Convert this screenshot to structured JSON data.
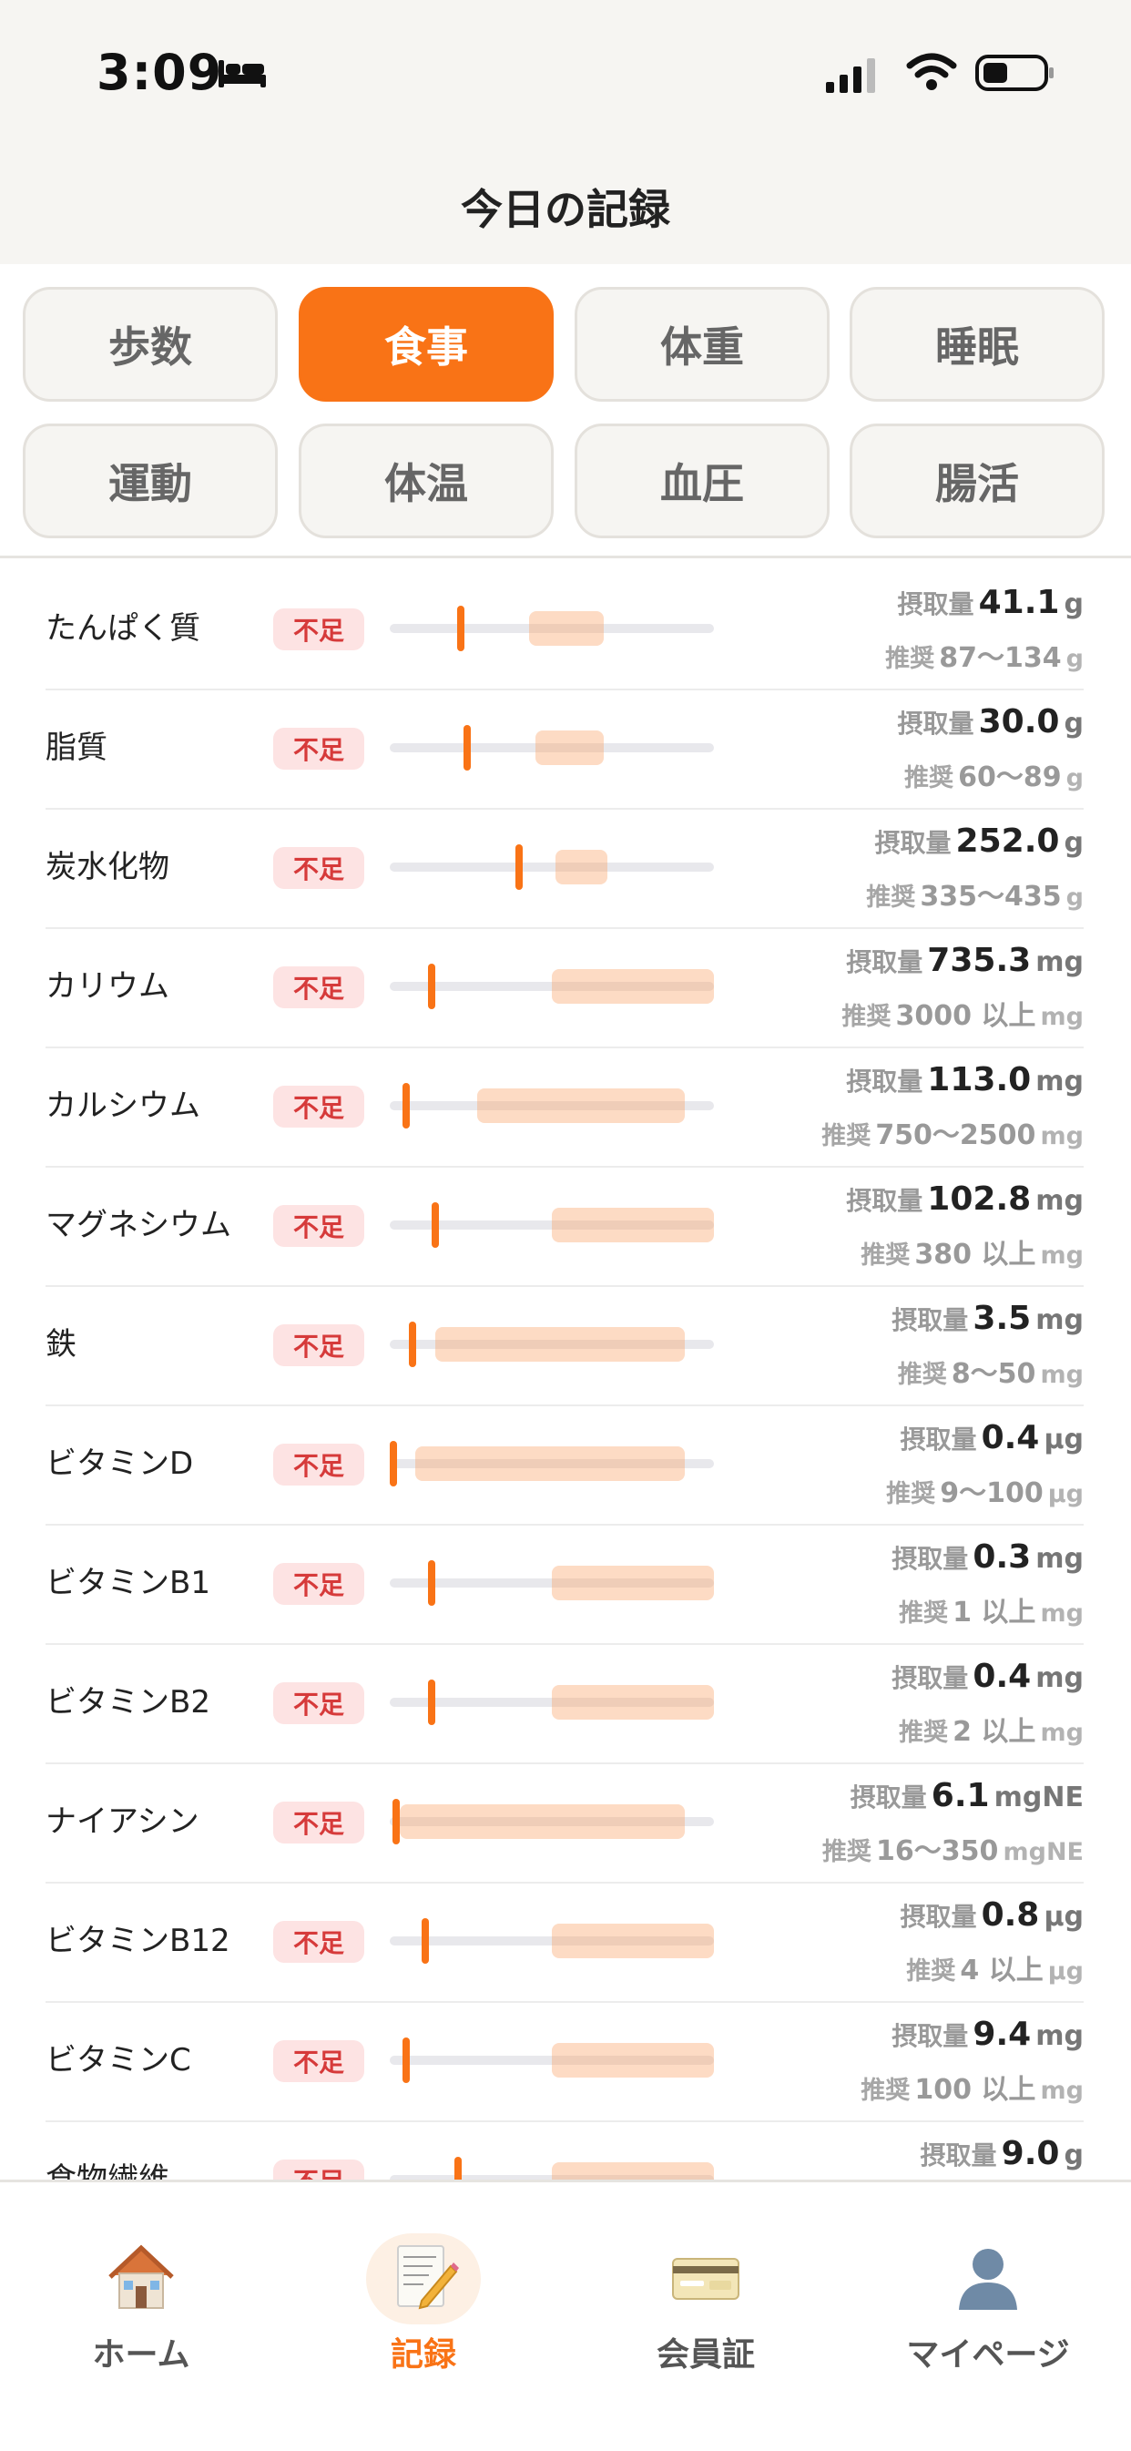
{
  "status_bar": {
    "time": "3:09"
  },
  "header": {
    "title": "今日の記録"
  },
  "tabs": [
    {
      "label": "歩数",
      "active": false
    },
    {
      "label": "食事",
      "active": true
    },
    {
      "label": "体重",
      "active": false
    },
    {
      "label": "睡眠",
      "active": false
    },
    {
      "label": "運動",
      "active": false
    },
    {
      "label": "体温",
      "active": false
    },
    {
      "label": "血圧",
      "active": false
    },
    {
      "label": "腸活",
      "active": false
    }
  ],
  "nutrients": [
    {
      "name": "たんぱく質",
      "status": "不足",
      "intake_label": "摂取量",
      "intake": "41.1",
      "unit": "g",
      "rec_label": "推奨",
      "rec_range": "87〜134",
      "rec_unit": "g",
      "marker_fraction": 0.22,
      "rec_fraction": [
        0.43,
        0.66
      ]
    },
    {
      "name": "脂質",
      "status": "不足",
      "intake_label": "摂取量",
      "intake": "30.0",
      "unit": "g",
      "rec_label": "推奨",
      "rec_range": "60〜89",
      "rec_unit": "g",
      "marker_fraction": 0.24,
      "rec_fraction": [
        0.45,
        0.66
      ]
    },
    {
      "name": "炭水化物",
      "status": "不足",
      "intake_label": "摂取量",
      "intake": "252.0",
      "unit": "g",
      "rec_label": "推奨",
      "rec_range": "335〜435",
      "rec_unit": "g",
      "marker_fraction": 0.4,
      "rec_fraction": [
        0.51,
        0.67
      ]
    },
    {
      "name": "カリウム",
      "status": "不足",
      "intake_label": "摂取量",
      "intake": "735.3",
      "unit": "mg",
      "rec_label": "推奨",
      "rec_range": "3000 以上",
      "rec_unit": "mg",
      "marker_fraction": 0.13,
      "rec_fraction": [
        0.5,
        1.0
      ]
    },
    {
      "name": "カルシウム",
      "status": "不足",
      "intake_label": "摂取量",
      "intake": "113.0",
      "unit": "mg",
      "rec_label": "推奨",
      "rec_range": "750〜2500",
      "rec_unit": "mg",
      "marker_fraction": 0.05,
      "rec_fraction": [
        0.27,
        0.91
      ]
    },
    {
      "name": "マグネシウム",
      "status": "不足",
      "intake_label": "摂取量",
      "intake": "102.8",
      "unit": "mg",
      "rec_label": "推奨",
      "rec_range": "380 以上",
      "rec_unit": "mg",
      "marker_fraction": 0.14,
      "rec_fraction": [
        0.5,
        1.0
      ]
    },
    {
      "name": "鉄",
      "status": "不足",
      "intake_label": "摂取量",
      "intake": "3.5",
      "unit": "mg",
      "rec_label": "推奨",
      "rec_range": "8〜50",
      "rec_unit": "mg",
      "marker_fraction": 0.07,
      "rec_fraction": [
        0.14,
        0.91
      ]
    },
    {
      "name": "ビタミンD",
      "status": "不足",
      "intake_label": "摂取量",
      "intake": "0.4",
      "unit": "µg",
      "rec_label": "推奨",
      "rec_range": "9〜100",
      "rec_unit": "µg",
      "marker_fraction": 0.01,
      "rec_fraction": [
        0.08,
        0.91
      ]
    },
    {
      "name": "ビタミンB1",
      "status": "不足",
      "intake_label": "摂取量",
      "intake": "0.3",
      "unit": "mg",
      "rec_label": "推奨",
      "rec_range": "1 以上",
      "rec_unit": "mg",
      "marker_fraction": 0.13,
      "rec_fraction": [
        0.5,
        1.0
      ]
    },
    {
      "name": "ビタミンB2",
      "status": "不足",
      "intake_label": "摂取量",
      "intake": "0.4",
      "unit": "mg",
      "rec_label": "推奨",
      "rec_range": "2 以上",
      "rec_unit": "mg",
      "marker_fraction": 0.13,
      "rec_fraction": [
        0.5,
        1.0
      ]
    },
    {
      "name": "ナイアシン",
      "status": "不足",
      "intake_label": "摂取量",
      "intake": "6.1",
      "unit": "mgNE",
      "rec_label": "推奨",
      "rec_range": "16〜350",
      "rec_unit": "mgNE",
      "marker_fraction": 0.02,
      "rec_fraction": [
        0.03,
        0.91
      ]
    },
    {
      "name": "ビタミンB12",
      "status": "不足",
      "intake_label": "摂取量",
      "intake": "0.8",
      "unit": "µg",
      "rec_label": "推奨",
      "rec_range": "4 以上",
      "rec_unit": "µg",
      "marker_fraction": 0.11,
      "rec_fraction": [
        0.5,
        1.0
      ]
    },
    {
      "name": "ビタミンC",
      "status": "不足",
      "intake_label": "摂取量",
      "intake": "9.4",
      "unit": "mg",
      "rec_label": "推奨",
      "rec_range": "100 以上",
      "rec_unit": "mg",
      "marker_fraction": 0.05,
      "rec_fraction": [
        0.5,
        1.0
      ]
    },
    {
      "name": "食物繊維",
      "status": "不足",
      "intake_label": "摂取量",
      "intake": "9.0",
      "unit": "g",
      "rec_label": "",
      "rec_range": "",
      "rec_unit": "",
      "marker_fraction": 0.21,
      "rec_fraction": [
        0.5,
        1.0
      ]
    }
  ],
  "bottom_nav": [
    {
      "label": "ホーム",
      "icon": "home-icon",
      "active": false
    },
    {
      "label": "記録",
      "icon": "notepad-pencil-icon",
      "active": true
    },
    {
      "label": "会員証",
      "icon": "member-card-icon",
      "active": false
    },
    {
      "label": "マイページ",
      "icon": "user-silhouette-icon",
      "active": false
    }
  ],
  "colors": {
    "accent": "#f97316",
    "badge_bg": "#fde3e3",
    "badge_text": "#d63a3a",
    "recommended_band": "#f9c9a3",
    "track": "#e8e8ec",
    "header_bg": "#f6f5f2"
  }
}
